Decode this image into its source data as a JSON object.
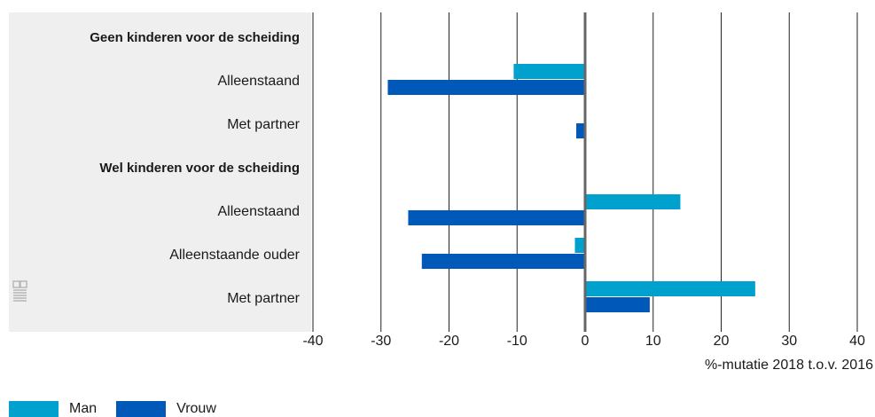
{
  "chart_data": {
    "type": "bar",
    "orientation": "horizontal",
    "categories": [
      {
        "label": "Geen kinderen voor de scheiding",
        "header": true
      },
      {
        "label": "Alleenstaand",
        "header": false
      },
      {
        "label": "Met partner",
        "header": false
      },
      {
        "label": "Wel kinderen voor de scheiding",
        "header": true
      },
      {
        "label": "Alleenstaand",
        "header": false
      },
      {
        "label": "Alleenstaande ouder",
        "header": false
      },
      {
        "label": "Met partner",
        "header": false
      }
    ],
    "series": [
      {
        "name": "Man",
        "color": "#00a1cd",
        "values": [
          null,
          -10.5,
          0,
          null,
          14,
          -1.5,
          25
        ]
      },
      {
        "name": "Vrouw",
        "color": "#0058b8",
        "values": [
          null,
          -29,
          -1.3,
          null,
          -26,
          -24,
          9.5
        ]
      }
    ],
    "xlabel": "%-mutatie 2018 t.o.v. 2016",
    "xlim": [
      -40,
      40
    ],
    "xticks": [
      -40,
      -30,
      -20,
      -10,
      0,
      10,
      20,
      30,
      40
    ],
    "grid": true,
    "legend_position": "bottom-left"
  },
  "colors": {
    "label_panel": "#efefef",
    "gridline": "#222222",
    "zero_line": "#666666"
  },
  "icons": {
    "watermark": "cbs-logo-icon"
  }
}
